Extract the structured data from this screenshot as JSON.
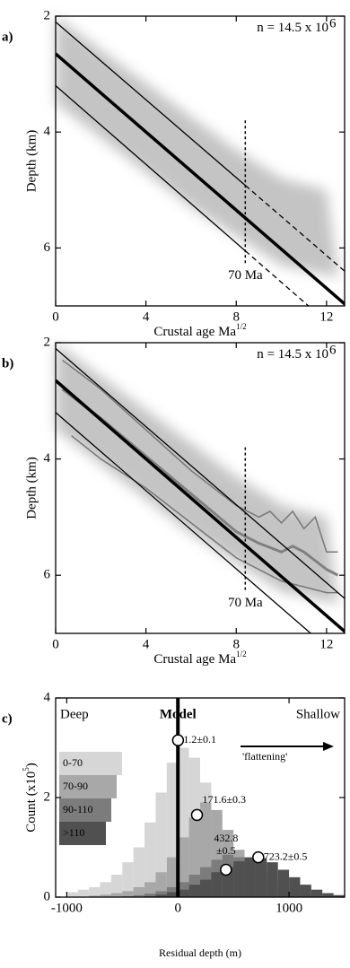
{
  "chart_data": [
    {
      "type": "line",
      "panel_label": "a)",
      "annotation": [
        "n = 14.5 x 10",
        "6"
      ],
      "xlabel": [
        "Crustal age Ma",
        "1/2"
      ],
      "ylabel": "Depth (km)",
      "xlim": [
        0,
        12.8
      ],
      "ylim": [
        2,
        7
      ],
      "y_inverted": true,
      "xticks": [
        0,
        4,
        8,
        12
      ],
      "yticks": [
        2,
        4,
        6
      ],
      "vline": {
        "x": 8.4,
        "y": [
          3.8,
          6.3
        ],
        "label": "70 Ma"
      },
      "series": [
        {
          "color": "#000000",
          "linewidth": 3.5,
          "style": "solid",
          "x": [
            0,
            12.9
          ],
          "values": [
            2.65,
            7
          ]
        },
        {
          "color": "#000000",
          "linewidth": 1.3,
          "style": "solid",
          "x": [
            0,
            8.4
          ],
          "values": [
            2.1,
            4.92
          ]
        },
        {
          "color": "#000000",
          "linewidth": 1.3,
          "style": "dashed",
          "x": [
            8.4,
            12.8
          ],
          "values": [
            4.92,
            6.4
          ]
        },
        {
          "color": "#000000",
          "linewidth": 1.3,
          "style": "solid",
          "x": [
            0,
            8.4
          ],
          "values": [
            3.2,
            6.05
          ]
        },
        {
          "color": "#000000",
          "linewidth": 1.3,
          "style": "dashed",
          "x": [
            8.4,
            11.2
          ],
          "values": [
            6.05,
            7
          ]
        }
      ]
    },
    {
      "type": "line",
      "panel_label": "b)",
      "annotation": [
        "n = 14.5 x 10",
        "6"
      ],
      "xlabel": [
        "Crustal age Ma",
        "1/2"
      ],
      "ylabel": "Depth (km)",
      "xlim": [
        0,
        12.8
      ],
      "ylim": [
        2,
        7
      ],
      "y_inverted": true,
      "xticks": [
        0,
        4,
        8,
        12
      ],
      "yticks": [
        2,
        4,
        6
      ],
      "vline": {
        "x": 8.4,
        "y": [
          3.8,
          6.3
        ],
        "label": "70 Ma"
      },
      "series": [
        {
          "color": "#777777",
          "linewidth": 1.5,
          "style": "solid",
          "x": [
            0.3,
            2,
            4,
            6,
            8,
            9,
            9.5,
            10,
            10.5,
            11,
            11.5,
            12,
            12.5
          ],
          "values": [
            2.3,
            2.8,
            3.5,
            4.2,
            4.8,
            5.0,
            4.9,
            5.1,
            4.9,
            5.2,
            5.0,
            5.6,
            5.6
          ]
        },
        {
          "color": "#777777",
          "linewidth": 1.5,
          "style": "solid",
          "x": [
            0.7,
            2,
            4,
            6,
            8,
            9,
            10,
            11,
            12,
            12.5
          ],
          "values": [
            3.6,
            4.0,
            4.5,
            5.1,
            5.7,
            5.9,
            6.1,
            6.2,
            6.3,
            6.3
          ]
        },
        {
          "color": "#808080",
          "linewidth": 3,
          "style": "solid",
          "x": [
            0.3,
            2,
            4,
            6,
            8,
            9,
            10,
            10.5,
            11,
            11.5,
            12,
            12.5
          ],
          "values": [
            2.8,
            3.3,
            3.95,
            4.6,
            5.25,
            5.45,
            5.6,
            5.5,
            5.6,
            5.75,
            5.9,
            6.0
          ]
        },
        {
          "color": "#000000",
          "linewidth": 3.5,
          "style": "solid",
          "x": [
            0,
            12.9
          ],
          "values": [
            2.65,
            7
          ]
        },
        {
          "color": "#000000",
          "linewidth": 1.3,
          "style": "solid",
          "x": [
            0,
            12.8
          ],
          "values": [
            2.1,
            6.4
          ]
        },
        {
          "color": "#000000",
          "linewidth": 1.3,
          "style": "solid",
          "x": [
            0,
            11.3
          ],
          "values": [
            3.2,
            7
          ]
        }
      ]
    },
    {
      "type": "histogram",
      "panel_label": "c)",
      "xlabel": "Residual depth (m)",
      "ylabel": [
        "Count (x10",
        "5",
        ")"
      ],
      "xlim": [
        -1100,
        1500
      ],
      "ylim": [
        0,
        4
      ],
      "xticks": [
        -1000,
        0,
        1000
      ],
      "yticks": [
        0,
        2,
        4
      ],
      "left_text": "Deep",
      "right_text": "Shallow",
      "model_label": "Model",
      "arrow_label": "'flattening'",
      "bins": [
        -1100,
        -1000,
        -900,
        -800,
        -700,
        -600,
        -500,
        -400,
        -300,
        -200,
        -100,
        0,
        100,
        200,
        300,
        400,
        500,
        600,
        700,
        800,
        900,
        1000,
        1100,
        1200,
        1300,
        1400,
        1500
      ],
      "series": [
        {
          "name": "0-70",
          "color": "#d6d6d6",
          "values": [
            0,
            0.1,
            0.15,
            0.2,
            0.3,
            0.45,
            0.7,
            1.0,
            1.5,
            2.1,
            2.7,
            3.0,
            2.8,
            2.3,
            1.6,
            1.1,
            0.65,
            0.4,
            0.25,
            0.12,
            0.07,
            0.04,
            0.02,
            0,
            0,
            0
          ]
        },
        {
          "name": "70-90",
          "color": "#a8a8a8",
          "values": [
            0,
            0,
            0,
            0.03,
            0.05,
            0.08,
            0.12,
            0.2,
            0.3,
            0.5,
            0.8,
            1.2,
            1.6,
            1.9,
            1.75,
            1.35,
            0.95,
            0.6,
            0.35,
            0.2,
            0.1,
            0.05,
            0.03,
            0.01,
            0,
            0
          ]
        },
        {
          "name": "90-110",
          "color": "#7c7c7c",
          "values": [
            0,
            0,
            0,
            0,
            0,
            0,
            0.02,
            0.04,
            0.07,
            0.12,
            0.2,
            0.3,
            0.45,
            0.6,
            0.75,
            0.85,
            0.8,
            0.65,
            0.5,
            0.35,
            0.22,
            0.12,
            0.06,
            0.03,
            0.01,
            0
          ]
        },
        {
          "name": ">110",
          "color": "#505050",
          "values": [
            0,
            0,
            0,
            0,
            0,
            0,
            0,
            0,
            0.02,
            0.05,
            0.1,
            0.15,
            0.25,
            0.35,
            0.5,
            0.6,
            0.72,
            0.8,
            0.78,
            0.7,
            0.55,
            0.4,
            0.25,
            0.15,
            0.08,
            0.04
          ]
        }
      ],
      "markers": [
        {
          "x": 1.2,
          "y": 3.15,
          "label": [
            "1.2±0.1"
          ]
        },
        {
          "x": 171.6,
          "y": 1.65,
          "label": [
            "171.6±0.3"
          ]
        },
        {
          "x": 432.8,
          "y": 0.55,
          "label": [
            "432.8",
            "±0.5"
          ]
        },
        {
          "x": 723.2,
          "y": 0.8,
          "label": [
            "723.2±0.5"
          ]
        }
      ]
    }
  ]
}
